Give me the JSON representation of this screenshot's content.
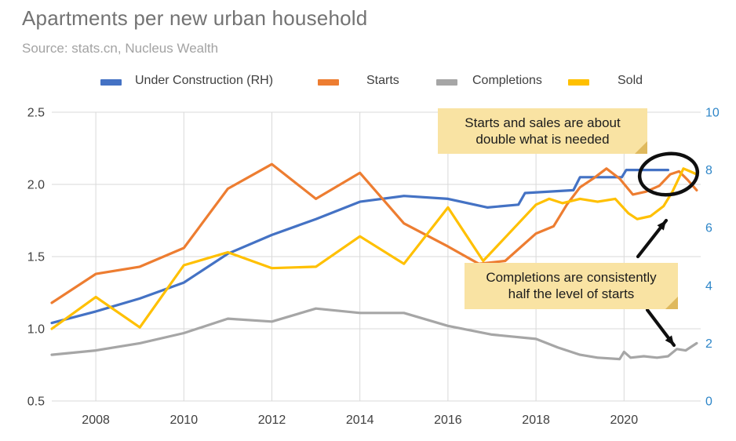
{
  "header": {
    "title": "Apartments per new urban household",
    "source": "Source: stats.cn, Nucleus Wealth"
  },
  "colors": {
    "grid": "#d9d9d9",
    "axis_text": "#3f3f3f",
    "right_axis_text": "#2e86c8",
    "note_background": "#f9e3a3",
    "annotation_ink": "#0f0f0f"
  },
  "chart_data": {
    "type": "line",
    "title": "Apartments per new urban household",
    "x_ticks": [
      "2008",
      "2010",
      "2012",
      "2014",
      "2016",
      "2018",
      "2020"
    ],
    "x_range": [
      2007,
      2021.74
    ],
    "y_left": {
      "ticks": [
        "2.5",
        "2.0",
        "1.5",
        "1.0",
        "0.5"
      ],
      "range": [
        0.5,
        2.5
      ]
    },
    "y_right": {
      "ticks": [
        "10",
        "8",
        "6",
        "4",
        "2",
        "0"
      ],
      "range": [
        0,
        10
      ]
    },
    "grid": true,
    "legend_position": "top",
    "series": [
      {
        "name": "Under Construction (RH)",
        "axis": "right",
        "color": "#4472c4",
        "points": [
          [
            2007,
            2.7
          ],
          [
            2008,
            3.1
          ],
          [
            2009,
            3.55
          ],
          [
            2010,
            4.1
          ],
          [
            2011,
            5.1
          ],
          [
            2012,
            5.75
          ],
          [
            2013,
            6.3
          ],
          [
            2014,
            6.9
          ],
          [
            2015,
            7.1
          ],
          [
            2016,
            7.0
          ],
          [
            2016.9,
            6.7
          ],
          [
            2017.6,
            6.8
          ],
          [
            2017.75,
            7.2
          ],
          [
            2018.85,
            7.3
          ],
          [
            2019,
            7.75
          ],
          [
            2019.95,
            7.75
          ],
          [
            2020.05,
            8.0
          ],
          [
            2021,
            8.0
          ]
        ]
      },
      {
        "name": "Starts",
        "axis": "left",
        "color": "#ed7d31",
        "points": [
          [
            2007,
            1.18
          ],
          [
            2008,
            1.38
          ],
          [
            2009,
            1.43
          ],
          [
            2010,
            1.56
          ],
          [
            2011,
            1.97
          ],
          [
            2012,
            2.14
          ],
          [
            2013,
            1.9
          ],
          [
            2014,
            2.08
          ],
          [
            2015,
            1.73
          ],
          [
            2016,
            1.57
          ],
          [
            2016.7,
            1.45
          ],
          [
            2017.3,
            1.47
          ],
          [
            2018,
            1.66
          ],
          [
            2018.4,
            1.71
          ],
          [
            2018.7,
            1.86
          ],
          [
            2019,
            1.98
          ],
          [
            2019.3,
            2.04
          ],
          [
            2019.6,
            2.11
          ],
          [
            2019.9,
            2.04
          ],
          [
            2020.2,
            1.93
          ],
          [
            2020.5,
            1.95
          ],
          [
            2020.8,
            1.99
          ],
          [
            2021.05,
            2.07
          ],
          [
            2021.25,
            2.09
          ],
          [
            2021.45,
            2.03
          ],
          [
            2021.65,
            1.96
          ]
        ]
      },
      {
        "name": "Completions",
        "axis": "left",
        "color": "#a6a6a6",
        "points": [
          [
            2007,
            0.82
          ],
          [
            2008,
            0.85
          ],
          [
            2009,
            0.9
          ],
          [
            2010,
            0.97
          ],
          [
            2011,
            1.07
          ],
          [
            2012,
            1.05
          ],
          [
            2013,
            1.14
          ],
          [
            2014,
            1.11
          ],
          [
            2015,
            1.11
          ],
          [
            2016,
            1.02
          ],
          [
            2017,
            0.96
          ],
          [
            2018,
            0.93
          ],
          [
            2018.5,
            0.87
          ],
          [
            2019,
            0.82
          ],
          [
            2019.4,
            0.8
          ],
          [
            2019.9,
            0.79
          ],
          [
            2020,
            0.84
          ],
          [
            2020.15,
            0.8
          ],
          [
            2020.45,
            0.81
          ],
          [
            2020.75,
            0.8
          ],
          [
            2021,
            0.81
          ],
          [
            2021.2,
            0.86
          ],
          [
            2021.4,
            0.85
          ],
          [
            2021.65,
            0.9
          ]
        ]
      },
      {
        "name": "Sold",
        "axis": "left",
        "color": "#ffc000",
        "points": [
          [
            2007,
            1.0
          ],
          [
            2008,
            1.22
          ],
          [
            2009,
            1.01
          ],
          [
            2010,
            1.44
          ],
          [
            2011,
            1.53
          ],
          [
            2012,
            1.42
          ],
          [
            2013,
            1.43
          ],
          [
            2014,
            1.64
          ],
          [
            2015,
            1.45
          ],
          [
            2016,
            1.84
          ],
          [
            2016.8,
            1.47
          ],
          [
            2018,
            1.86
          ],
          [
            2018.3,
            1.9
          ],
          [
            2018.6,
            1.87
          ],
          [
            2019,
            1.9
          ],
          [
            2019.4,
            1.88
          ],
          [
            2019.8,
            1.9
          ],
          [
            2020.1,
            1.8
          ],
          [
            2020.3,
            1.76
          ],
          [
            2020.6,
            1.78
          ],
          [
            2020.9,
            1.85
          ],
          [
            2021.1,
            1.95
          ],
          [
            2021.35,
            2.11
          ],
          [
            2021.5,
            2.09
          ],
          [
            2021.65,
            2.07
          ]
        ]
      }
    ],
    "annotations": {
      "sticky_notes": [
        {
          "line1": "Starts and sales are about",
          "line2": "double what is needed"
        },
        {
          "line1": "Completions are consistently",
          "line2": "half the level of starts"
        }
      ],
      "circle_highlight": "line endpoints near right-axis value 8",
      "arrow_targets": [
        "Sold line recovery",
        "Completions line end"
      ]
    }
  }
}
